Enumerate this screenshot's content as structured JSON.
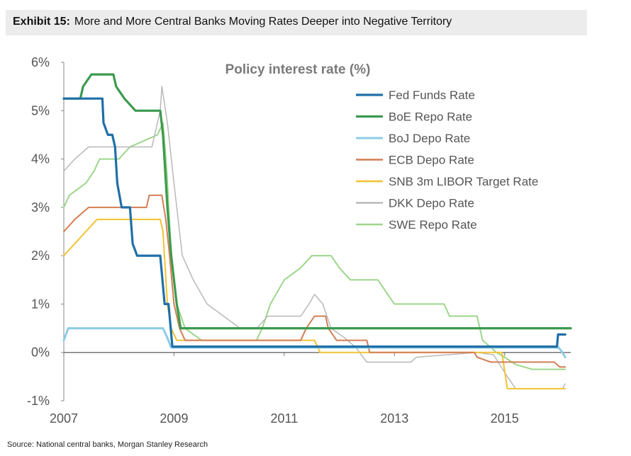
{
  "exhibit": {
    "label": "Exhibit 15:",
    "title": "More and More Central Banks Moving Rates Deeper into Negative Territory"
  },
  "source": "Source: National central banks, Morgan Stanley Research",
  "chart_data": {
    "type": "line",
    "title": "Policy interest rate (%)",
    "xlabel": "",
    "ylabel": "",
    "xlim": [
      2007.0,
      2016.2
    ],
    "ylim": [
      -1,
      6
    ],
    "x_ticks": [
      2007,
      2009,
      2011,
      2013,
      2015
    ],
    "x_tick_labels": [
      "2007",
      "2009",
      "2011",
      "2013",
      "2015"
    ],
    "y_ticks": [
      -1,
      0,
      1,
      2,
      3,
      4,
      5,
      6
    ],
    "y_tick_labels": [
      "-1%",
      "0%",
      "1%",
      "2%",
      "3%",
      "4%",
      "5%",
      "6%"
    ],
    "grid": false,
    "legend_position": "top-right",
    "series": [
      {
        "name": "Fed Funds Rate",
        "color": "#1f6fa8",
        "width": 3.2,
        "points": [
          [
            2007.0,
            5.25
          ],
          [
            2007.7,
            5.25
          ],
          [
            2007.72,
            4.75
          ],
          [
            2007.8,
            4.5
          ],
          [
            2007.88,
            4.5
          ],
          [
            2007.93,
            4.25
          ],
          [
            2007.97,
            3.5
          ],
          [
            2008.05,
            3.0
          ],
          [
            2008.2,
            3.0
          ],
          [
            2008.25,
            2.25
          ],
          [
            2008.33,
            2.0
          ],
          [
            2008.75,
            2.0
          ],
          [
            2008.79,
            1.5
          ],
          [
            2008.83,
            1.0
          ],
          [
            2008.9,
            1.0
          ],
          [
            2008.97,
            0.12
          ],
          [
            2015.95,
            0.12
          ],
          [
            2015.97,
            0.37
          ],
          [
            2016.1,
            0.37
          ]
        ]
      },
      {
        "name": "BoE Repo Rate",
        "color": "#3c9a4e",
        "width": 3.2,
        "points": [
          [
            2007.0,
            5.25
          ],
          [
            2007.3,
            5.25
          ],
          [
            2007.35,
            5.5
          ],
          [
            2007.5,
            5.75
          ],
          [
            2007.9,
            5.75
          ],
          [
            2007.95,
            5.5
          ],
          [
            2008.1,
            5.25
          ],
          [
            2008.3,
            5.0
          ],
          [
            2008.75,
            5.0
          ],
          [
            2008.8,
            4.5
          ],
          [
            2008.88,
            3.0
          ],
          [
            2008.95,
            2.0
          ],
          [
            2009.05,
            1.0
          ],
          [
            2009.12,
            0.5
          ],
          [
            2016.2,
            0.5
          ]
        ]
      },
      {
        "name": "BoJ Depo Rate",
        "color": "#8ccce4",
        "width": 3,
        "points": [
          [
            2007.0,
            0.25
          ],
          [
            2007.08,
            0.5
          ],
          [
            2008.8,
            0.5
          ],
          [
            2008.88,
            0.3
          ],
          [
            2008.95,
            0.1
          ],
          [
            2015.98,
            0.1
          ],
          [
            2016.05,
            0.0
          ],
          [
            2016.1,
            -0.1
          ]
        ]
      },
      {
        "name": "ECB Depo Rate",
        "color": "#d47d55",
        "width": 2,
        "points": [
          [
            2007.0,
            2.5
          ],
          [
            2007.2,
            2.75
          ],
          [
            2007.45,
            3.0
          ],
          [
            2008.5,
            3.0
          ],
          [
            2008.55,
            3.25
          ],
          [
            2008.78,
            3.25
          ],
          [
            2008.85,
            2.75
          ],
          [
            2008.92,
            2.0
          ],
          [
            2009.0,
            1.0
          ],
          [
            2009.1,
            0.5
          ],
          [
            2009.2,
            0.25
          ],
          [
            2011.3,
            0.25
          ],
          [
            2011.4,
            0.5
          ],
          [
            2011.55,
            0.75
          ],
          [
            2011.75,
            0.75
          ],
          [
            2011.8,
            0.5
          ],
          [
            2011.95,
            0.25
          ],
          [
            2012.5,
            0.25
          ],
          [
            2012.55,
            0.0
          ],
          [
            2014.45,
            0.0
          ],
          [
            2014.5,
            -0.1
          ],
          [
            2014.75,
            -0.2
          ],
          [
            2015.9,
            -0.2
          ],
          [
            2016.0,
            -0.3
          ],
          [
            2016.1,
            -0.3
          ]
        ]
      },
      {
        "name": "SNB 3m LIBOR Target Rate",
        "color": "#f1c232",
        "width": 2,
        "points": [
          [
            2007.0,
            2.0
          ],
          [
            2007.2,
            2.25
          ],
          [
            2007.4,
            2.5
          ],
          [
            2007.6,
            2.75
          ],
          [
            2008.75,
            2.75
          ],
          [
            2008.8,
            2.5
          ],
          [
            2008.88,
            1.0
          ],
          [
            2008.95,
            0.5
          ],
          [
            2009.05,
            0.25
          ],
          [
            2011.55,
            0.25
          ],
          [
            2011.65,
            0.0
          ],
          [
            2014.95,
            0.0
          ],
          [
            2015.05,
            -0.75
          ],
          [
            2016.1,
            -0.75
          ]
        ]
      },
      {
        "name": "DKK Depo Rate",
        "color": "#b8b8b8",
        "width": 1.5,
        "points": [
          [
            2007.0,
            3.75
          ],
          [
            2007.2,
            4.0
          ],
          [
            2007.45,
            4.25
          ],
          [
            2008.6,
            4.25
          ],
          [
            2008.75,
            5.0
          ],
          [
            2008.78,
            5.5
          ],
          [
            2008.88,
            4.75
          ],
          [
            2009.0,
            3.5
          ],
          [
            2009.15,
            2.0
          ],
          [
            2009.35,
            1.5
          ],
          [
            2009.6,
            1.0
          ],
          [
            2009.9,
            0.75
          ],
          [
            2010.2,
            0.5
          ],
          [
            2010.5,
            0.5
          ],
          [
            2010.7,
            0.75
          ],
          [
            2011.3,
            0.75
          ],
          [
            2011.45,
            1.0
          ],
          [
            2011.55,
            1.2
          ],
          [
            2011.7,
            1.0
          ],
          [
            2011.85,
            0.5
          ],
          [
            2012.1,
            0.3
          ],
          [
            2012.3,
            0.1
          ],
          [
            2012.5,
            -0.2
          ],
          [
            2013.3,
            -0.2
          ],
          [
            2013.4,
            -0.1
          ],
          [
            2014.5,
            0.0
          ],
          [
            2014.8,
            -0.05
          ],
          [
            2015.05,
            -0.5
          ],
          [
            2015.2,
            -0.75
          ],
          [
            2016.05,
            -0.75
          ],
          [
            2016.1,
            -0.65
          ]
        ]
      },
      {
        "name": "SWE Repo Rate",
        "color": "#9dd68b",
        "width": 2,
        "points": [
          [
            2007.0,
            3.0
          ],
          [
            2007.1,
            3.25
          ],
          [
            2007.4,
            3.5
          ],
          [
            2007.55,
            3.75
          ],
          [
            2007.65,
            4.0
          ],
          [
            2008.0,
            4.0
          ],
          [
            2008.2,
            4.25
          ],
          [
            2008.7,
            4.5
          ],
          [
            2008.8,
            4.75
          ],
          [
            2008.87,
            3.75
          ],
          [
            2008.95,
            2.0
          ],
          [
            2009.05,
            1.0
          ],
          [
            2009.2,
            0.5
          ],
          [
            2009.5,
            0.25
          ],
          [
            2010.5,
            0.25
          ],
          [
            2010.6,
            0.5
          ],
          [
            2010.75,
            1.0
          ],
          [
            2011.0,
            1.5
          ],
          [
            2011.3,
            1.75
          ],
          [
            2011.5,
            2.0
          ],
          [
            2011.85,
            2.0
          ],
          [
            2012.0,
            1.75
          ],
          [
            2012.2,
            1.5
          ],
          [
            2012.7,
            1.5
          ],
          [
            2012.85,
            1.25
          ],
          [
            2013.0,
            1.0
          ],
          [
            2013.9,
            1.0
          ],
          [
            2014.0,
            0.75
          ],
          [
            2014.5,
            0.75
          ],
          [
            2014.6,
            0.25
          ],
          [
            2014.85,
            0.0
          ],
          [
            2015.0,
            -0.1
          ],
          [
            2015.2,
            -0.25
          ],
          [
            2015.5,
            -0.35
          ],
          [
            2016.1,
            -0.35
          ]
        ]
      }
    ]
  }
}
